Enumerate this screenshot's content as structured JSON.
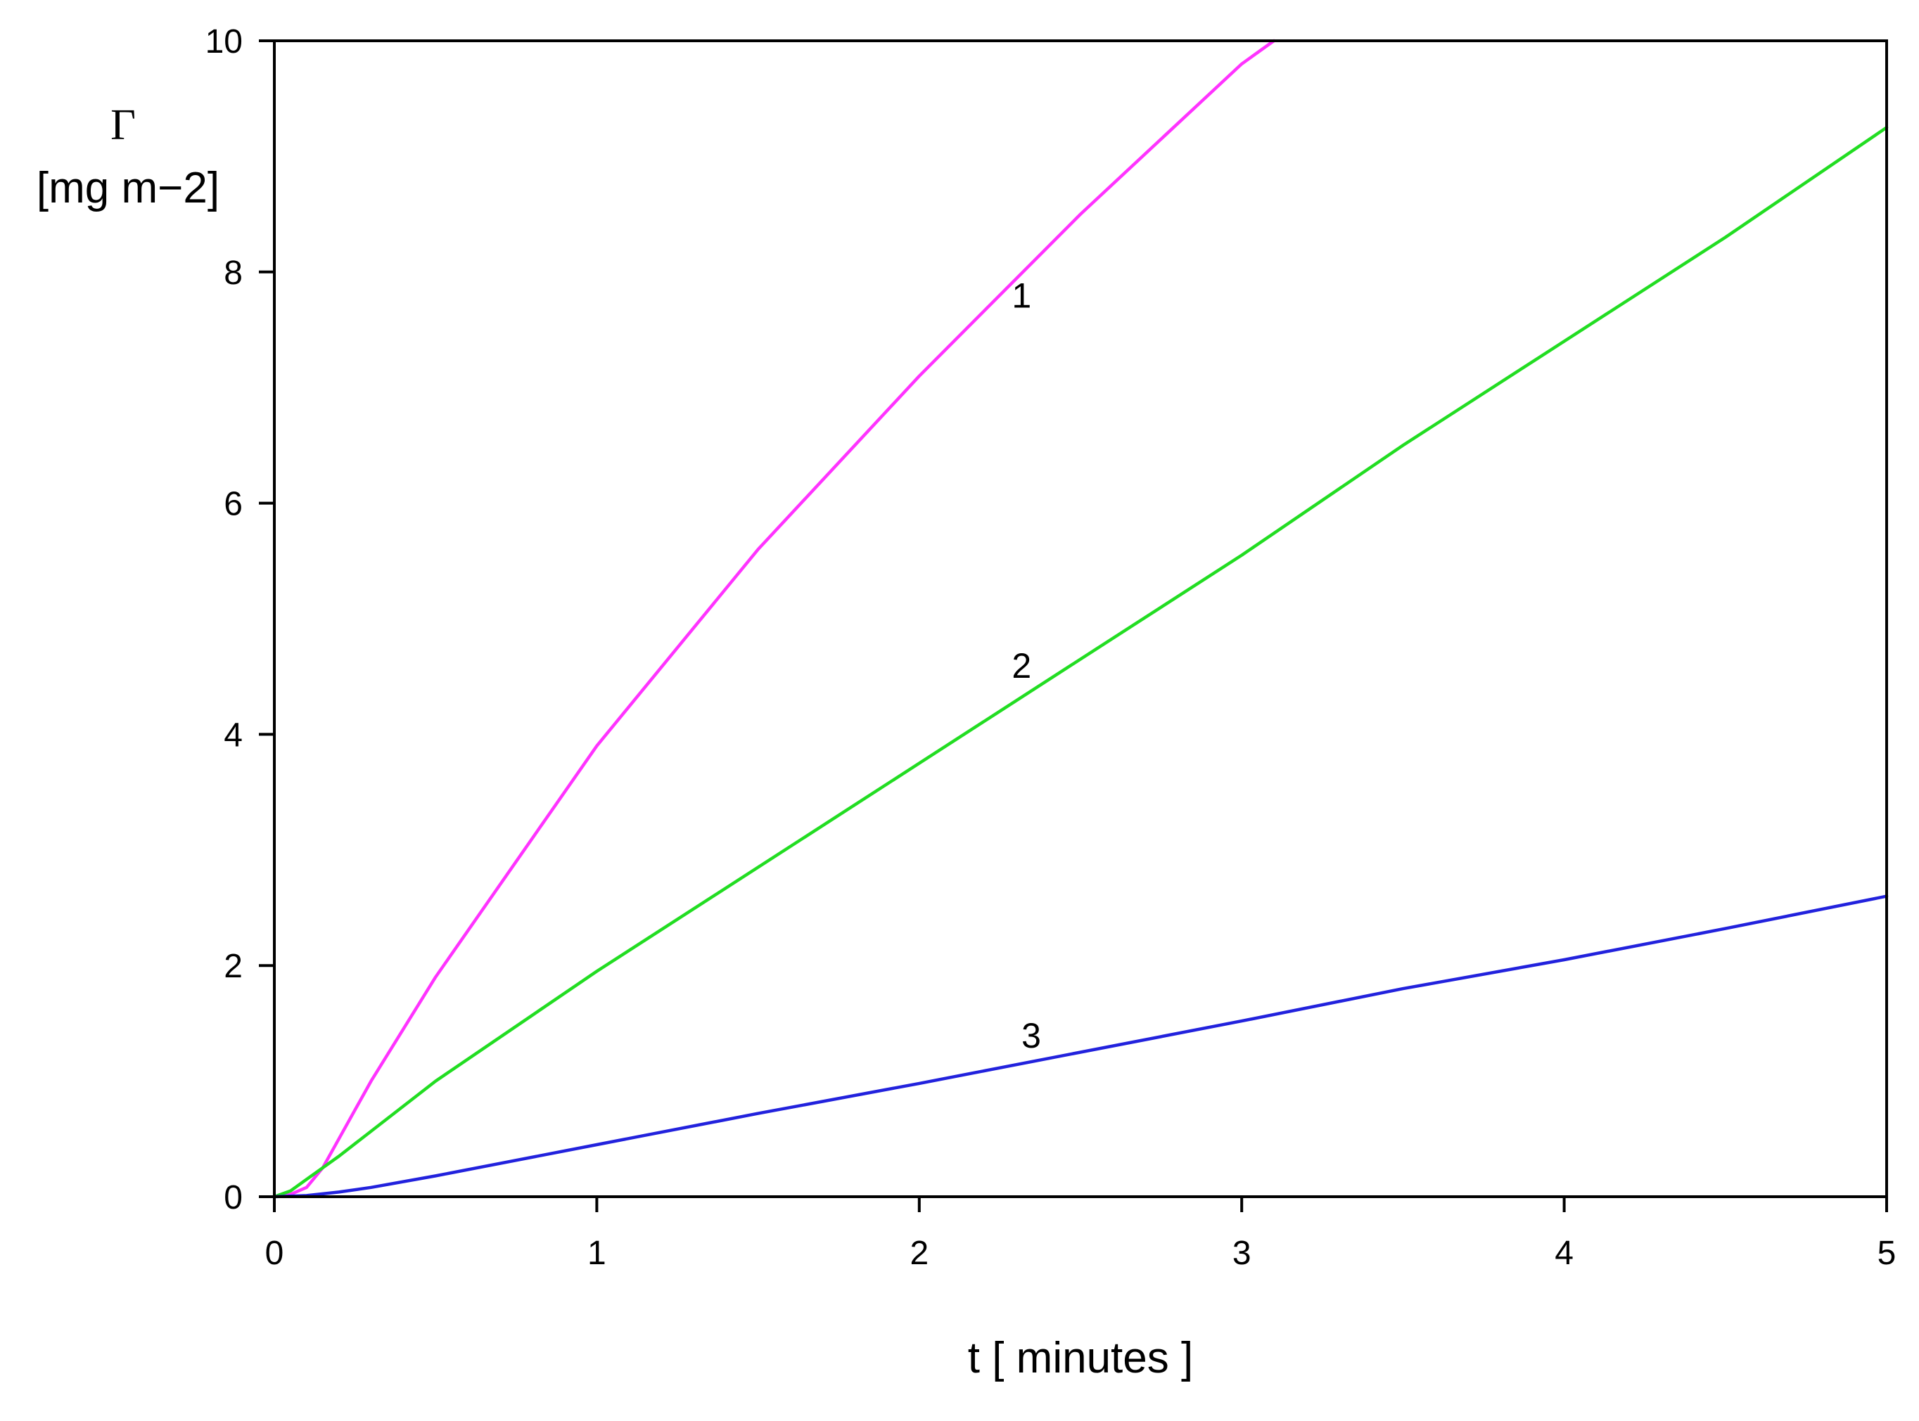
{
  "chart_data": {
    "type": "line",
    "title": "",
    "xlabel": "t [ minutes ]",
    "ylabel_symbol": "Γ",
    "ylabel_unit": "[mg m−2]",
    "xlim": [
      0,
      5
    ],
    "ylim": [
      0,
      10
    ],
    "x_ticks": [
      0,
      1,
      2,
      3,
      4,
      5
    ],
    "y_ticks": [
      0,
      2,
      4,
      6,
      8,
      10
    ],
    "grid": false,
    "series": [
      {
        "label": "1",
        "color": "#ff33ff",
        "label_at": [
          2.3,
          7.8
        ],
        "points": [
          [
            0,
            0
          ],
          [
            0.05,
            0.02
          ],
          [
            0.1,
            0.08
          ],
          [
            0.15,
            0.25
          ],
          [
            0.2,
            0.5
          ],
          [
            0.3,
            1.0
          ],
          [
            0.5,
            1.9
          ],
          [
            0.75,
            2.9
          ],
          [
            1.0,
            3.9
          ],
          [
            1.5,
            5.6
          ],
          [
            2.0,
            7.1
          ],
          [
            2.5,
            8.5
          ],
          [
            3.0,
            9.8
          ],
          [
            3.1,
            10.0
          ]
        ]
      },
      {
        "label": "2",
        "color": "#22dd22",
        "label_at": [
          2.3,
          4.6
        ],
        "points": [
          [
            0,
            0
          ],
          [
            0.05,
            0.05
          ],
          [
            0.1,
            0.15
          ],
          [
            0.2,
            0.35
          ],
          [
            0.5,
            1.0
          ],
          [
            1.0,
            1.95
          ],
          [
            1.5,
            2.85
          ],
          [
            2.0,
            3.75
          ],
          [
            2.5,
            4.65
          ],
          [
            3.0,
            5.55
          ],
          [
            3.5,
            6.5
          ],
          [
            4.0,
            7.4
          ],
          [
            4.5,
            8.3
          ],
          [
            5.0,
            9.25
          ]
        ]
      },
      {
        "label": "3",
        "color": "#2222dd",
        "label_at": [
          2.33,
          1.4
        ],
        "points": [
          [
            0,
            0
          ],
          [
            0.1,
            0.01
          ],
          [
            0.2,
            0.04
          ],
          [
            0.3,
            0.08
          ],
          [
            0.5,
            0.18
          ],
          [
            1.0,
            0.45
          ],
          [
            1.5,
            0.72
          ],
          [
            2.0,
            0.98
          ],
          [
            2.5,
            1.25
          ],
          [
            3.0,
            1.52
          ],
          [
            3.5,
            1.8
          ],
          [
            4.0,
            2.05
          ],
          [
            4.5,
            2.32
          ],
          [
            5.0,
            2.6
          ]
        ]
      }
    ]
  }
}
